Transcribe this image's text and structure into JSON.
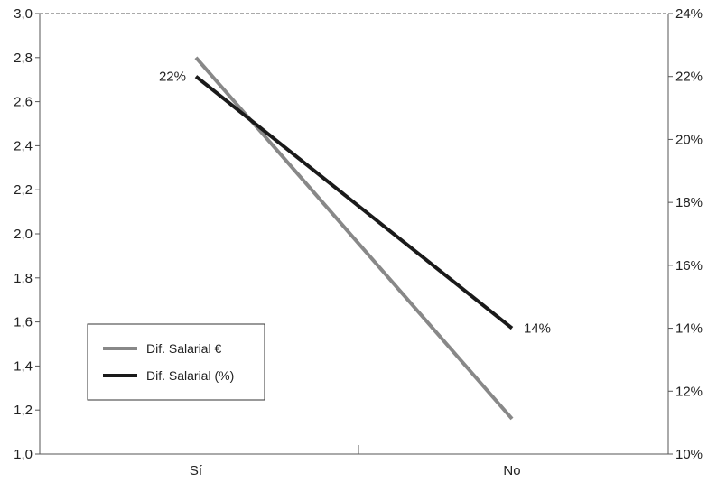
{
  "chart_data": {
    "type": "line",
    "categories": [
      "Sí",
      "No"
    ],
    "left_axis": {
      "ylim": [
        1.0,
        3.0
      ],
      "ticks": [
        "1,0",
        "1,2",
        "1,4",
        "1,6",
        "1,8",
        "2,0",
        "2,2",
        "2,4",
        "2,6",
        "2,8",
        "3,0"
      ]
    },
    "right_axis": {
      "ylim": [
        10,
        24
      ],
      "ticks": [
        "10%",
        "12%",
        "14%",
        "16%",
        "18%",
        "20%",
        "22%",
        "24%"
      ]
    },
    "series": [
      {
        "name": "Dif. Salarial €",
        "axis": "left",
        "color": "#888888",
        "values": [
          2.8,
          1.16
        ]
      },
      {
        "name": "Dif. Salarial (%)",
        "axis": "right",
        "color": "#1a1a1a",
        "values": [
          22,
          14
        ],
        "data_labels": [
          "22%",
          "14%"
        ]
      }
    ],
    "grid": false,
    "legend_position": "bottom-left"
  }
}
